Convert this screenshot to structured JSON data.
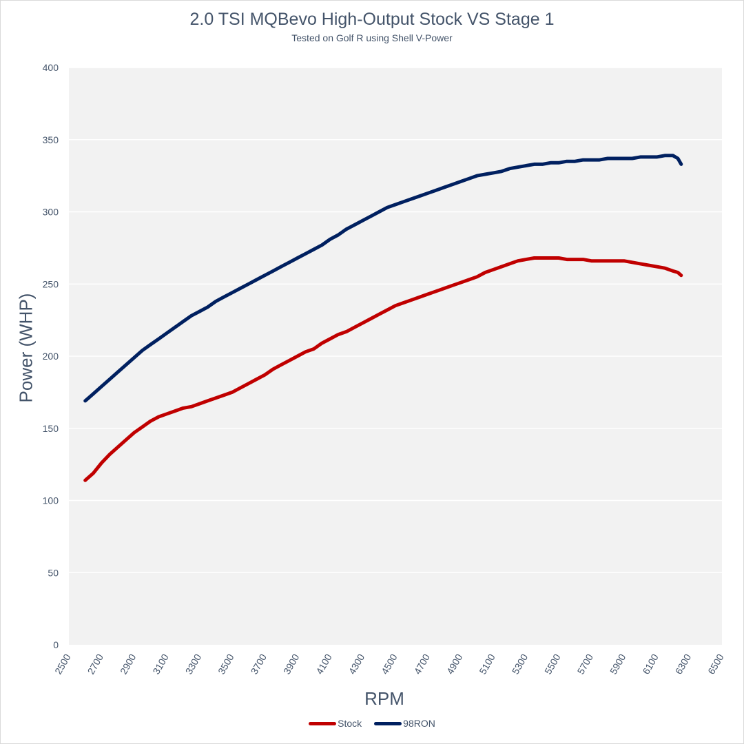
{
  "chart_data": {
    "type": "line",
    "title": "2.0 TSI MQBevo High-Output Stock VS Stage 1",
    "subtitle": "Tested on Golf R using Shell V-Power",
    "xlabel": "RPM",
    "ylabel": "Power (WHP)",
    "xlim": [
      2500,
      6500
    ],
    "ylim": [
      0,
      400
    ],
    "x_ticks": [
      "2500",
      "2700",
      "2900",
      "3100",
      "3300",
      "3500",
      "3700",
      "3900",
      "4100",
      "4300",
      "4500",
      "4700",
      "4900",
      "5100",
      "5300",
      "5500",
      "5700",
      "5900",
      "6100",
      "6300",
      "6500"
    ],
    "y_ticks": [
      "0",
      "50",
      "100",
      "150",
      "200",
      "250",
      "300",
      "350",
      "400"
    ],
    "grid": "horizontal",
    "legend_position": "bottom",
    "series": [
      {
        "name": "Stock",
        "color": "#c00000",
        "x": [
          2600,
          2650,
          2700,
          2750,
          2800,
          2850,
          2900,
          2950,
          3000,
          3050,
          3100,
          3150,
          3200,
          3250,
          3300,
          3350,
          3400,
          3450,
          3500,
          3550,
          3600,
          3650,
          3700,
          3750,
          3800,
          3850,
          3900,
          3950,
          4000,
          4050,
          4100,
          4150,
          4200,
          4250,
          4300,
          4350,
          4400,
          4450,
          4500,
          4550,
          4600,
          4650,
          4700,
          4750,
          4800,
          4850,
          4900,
          4950,
          5000,
          5050,
          5100,
          5150,
          5200,
          5250,
          5300,
          5350,
          5400,
          5450,
          5500,
          5550,
          5600,
          5650,
          5700,
          5750,
          5800,
          5850,
          5900,
          5950,
          6000,
          6050,
          6100,
          6150,
          6200,
          6230,
          6250
        ],
        "y": [
          114,
          119,
          126,
          132,
          137,
          142,
          147,
          151,
          155,
          158,
          160,
          162,
          164,
          165,
          167,
          169,
          171,
          173,
          175,
          178,
          181,
          184,
          187,
          191,
          194,
          197,
          200,
          203,
          205,
          209,
          212,
          215,
          217,
          220,
          223,
          226,
          229,
          232,
          235,
          237,
          239,
          241,
          243,
          245,
          247,
          249,
          251,
          253,
          255,
          258,
          260,
          262,
          264,
          266,
          267,
          268,
          268,
          268,
          268,
          267,
          267,
          267,
          266,
          266,
          266,
          266,
          266,
          265,
          264,
          263,
          262,
          261,
          259,
          258,
          256
        ]
      },
      {
        "name": "98RON",
        "color": "#002060",
        "x": [
          2600,
          2650,
          2700,
          2750,
          2800,
          2850,
          2900,
          2950,
          3000,
          3050,
          3100,
          3150,
          3200,
          3250,
          3300,
          3350,
          3400,
          3450,
          3500,
          3550,
          3600,
          3650,
          3700,
          3750,
          3800,
          3850,
          3900,
          3950,
          4000,
          4050,
          4100,
          4150,
          4200,
          4250,
          4300,
          4350,
          4400,
          4450,
          4500,
          4550,
          4600,
          4650,
          4700,
          4750,
          4800,
          4850,
          4900,
          4950,
          5000,
          5050,
          5100,
          5150,
          5200,
          5250,
          5300,
          5350,
          5400,
          5450,
          5500,
          5550,
          5600,
          5650,
          5700,
          5750,
          5800,
          5850,
          5900,
          5950,
          6000,
          6050,
          6100,
          6150,
          6200,
          6230,
          6250
        ],
        "y": [
          169,
          174,
          179,
          184,
          189,
          194,
          199,
          204,
          208,
          212,
          216,
          220,
          224,
          228,
          231,
          234,
          238,
          241,
          244,
          247,
          250,
          253,
          256,
          259,
          262,
          265,
          268,
          271,
          274,
          277,
          281,
          284,
          288,
          291,
          294,
          297,
          300,
          303,
          305,
          307,
          309,
          311,
          313,
          315,
          317,
          319,
          321,
          323,
          325,
          326,
          327,
          328,
          330,
          331,
          332,
          333,
          333,
          334,
          334,
          335,
          335,
          336,
          336,
          336,
          337,
          337,
          337,
          337,
          338,
          338,
          338,
          339,
          339,
          337,
          333
        ]
      }
    ]
  }
}
